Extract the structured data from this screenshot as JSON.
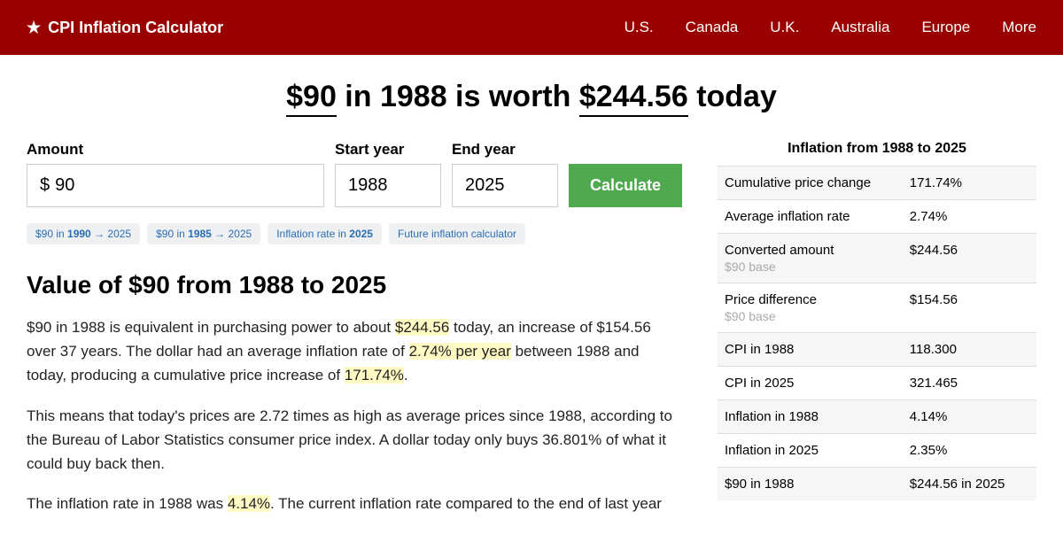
{
  "header": {
    "brand": "CPI Inflation Calculator",
    "nav": [
      "U.S.",
      "Canada",
      "U.K.",
      "Australia",
      "Europe",
      "More"
    ]
  },
  "headline": {
    "amount": "$90",
    "mid1": " in 1988 is worth ",
    "value": "$244.56",
    "mid2": " today"
  },
  "form": {
    "amount_label": "Amount",
    "currency": "$",
    "amount_value": "90",
    "start_label": "Start year",
    "start_value": "1988",
    "end_label": "End year",
    "end_value": "2025",
    "button": "Calculate"
  },
  "chips": [
    {
      "p1": "$90 in ",
      "b": "1990",
      "p2": " → 2025"
    },
    {
      "p1": "$90 in ",
      "b": "1985",
      "p2": " → 2025"
    },
    {
      "p1": "Inflation rate in ",
      "b": "2025",
      "p2": ""
    },
    {
      "p1": "Future inflation calculator",
      "b": "",
      "p2": ""
    }
  ],
  "section_title": "Value of $90 from 1988 to 2025",
  "para1": {
    "t1": "$90 in 1988 is equivalent in purchasing power to about ",
    "h1": "$244.56",
    "t2": " today, an increase of $154.56 over 37 years. The dollar had an average inflation rate of ",
    "h2": "2.74% per year",
    "t3": " between 1988 and today, producing a cumulative price increase of ",
    "h3": "171.74%",
    "t4": "."
  },
  "para2": "This means that today's prices are 2.72 times as high as average prices since 1988, according to the Bureau of Labor Statistics consumer price index. A dollar today only buys 36.801% of what it could buy back then.",
  "para3": {
    "t1": "The inflation rate in 1988 was ",
    "h1": "4.14%",
    "t2": ". The current inflation rate compared to the end of last year"
  },
  "stats": {
    "title": "Inflation from 1988 to 2025",
    "rows": [
      {
        "label": "Cumulative price change",
        "sub": "",
        "value": "171.74%"
      },
      {
        "label": "Average inflation rate",
        "sub": "",
        "value": "2.74%"
      },
      {
        "label": "Converted amount",
        "sub": "$90 base",
        "value": "$244.56"
      },
      {
        "label": "Price difference",
        "sub": "$90 base",
        "value": "$154.56"
      },
      {
        "label": "CPI in 1988",
        "sub": "",
        "value": "118.300"
      },
      {
        "label": "CPI in 2025",
        "sub": "",
        "value": "321.465"
      },
      {
        "label": "Inflation in 1988",
        "sub": "",
        "value": "4.14%"
      },
      {
        "label": "Inflation in 2025",
        "sub": "",
        "value": "2.35%"
      },
      {
        "label": "$90 in 1988",
        "sub": "",
        "value": "$244.56 in 2025"
      }
    ]
  }
}
